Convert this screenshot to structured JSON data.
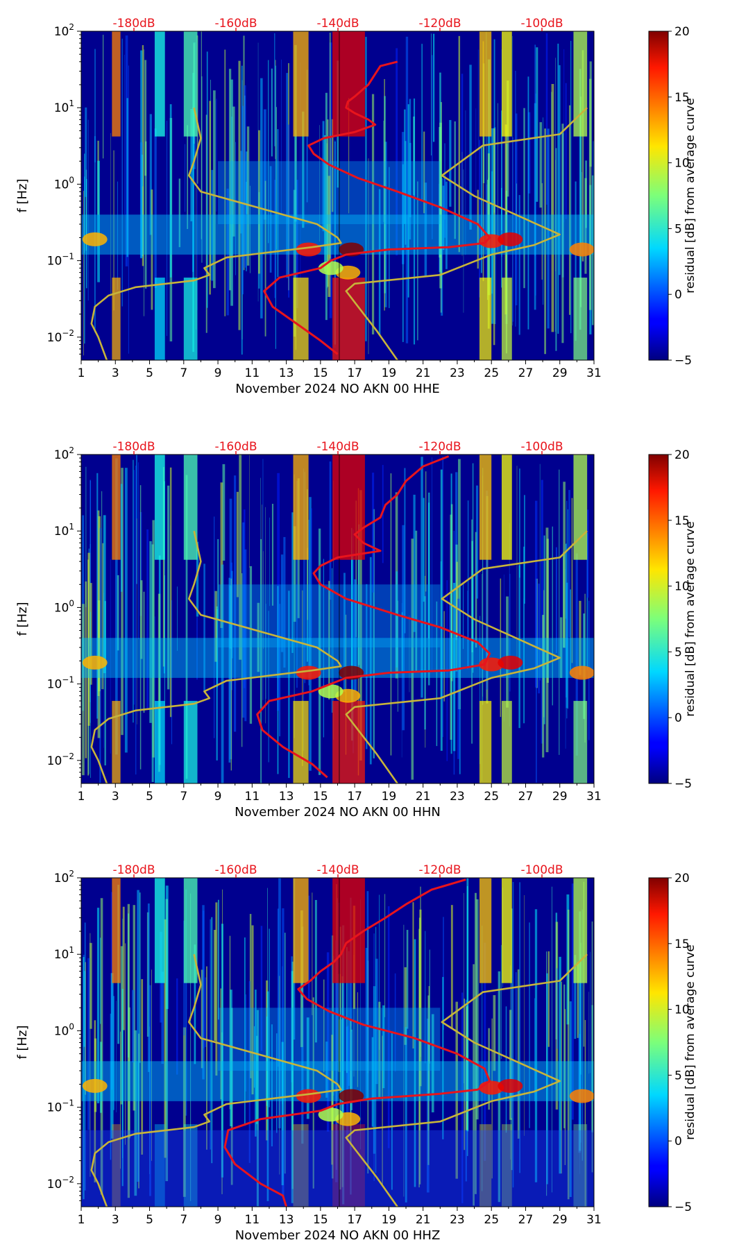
{
  "chart_data": [
    {
      "type": "heatmap",
      "xlabel": "November 2024 NO AKN 00 HHE",
      "ylabel": "f [Hz]",
      "x_ticks": [
        "1",
        "3",
        "5",
        "7",
        "9",
        "11",
        "13",
        "15",
        "17",
        "19",
        "21",
        "23",
        "25",
        "27",
        "29",
        "31"
      ],
      "xlim": [
        1,
        31
      ],
      "y_scale": "log",
      "ylim": [
        0.005,
        100
      ],
      "y_ticks": [
        "10^-2",
        "10^-1",
        "10^0",
        "10^1",
        "10^2"
      ],
      "top_axis_ticks": [
        "-180dB",
        "-160dB",
        "-140dB",
        "-120dB",
        "-100dB"
      ],
      "colorbar": {
        "label": "residual [dB] from average curve",
        "range": [
          -5,
          20
        ],
        "ticks": [
          "−5",
          "0",
          "5",
          "10",
          "15",
          "20"
        ]
      },
      "series": [
        {
          "color": "#e8141c",
          "x": [
            19.5,
            18.5,
            17.8,
            17.0,
            16.6,
            16.5,
            17.0,
            17.8,
            18.2,
            17.0,
            15.2,
            14.3,
            14.6,
            15.5,
            17.2,
            19.5,
            22.0,
            24.2,
            24.9,
            24.6,
            22.5,
            19.0,
            16.5,
            15.6,
            15.0,
            12.6,
            11.7,
            12.2,
            13.6,
            15.0,
            16.0
          ],
          "y": [
            40,
            35,
            20,
            14,
            12,
            10,
            8.5,
            7,
            6,
            4.8,
            4.0,
            3.2,
            2.5,
            1.8,
            1.2,
            0.8,
            0.5,
            0.3,
            0.2,
            0.17,
            0.15,
            0.14,
            0.12,
            0.1,
            0.08,
            0.06,
            0.04,
            0.025,
            0.015,
            0.009,
            0.006
          ]
        },
        {
          "color": "#c8b43a",
          "x": [
            7.6,
            8.0,
            7.6,
            7.3,
            8.0,
            14.8,
            16.0,
            16.2,
            14.5,
            9.5,
            8.2,
            8.5,
            7.6,
            4.2,
            2.6,
            1.8,
            1.6,
            2.0,
            2.5
          ],
          "y": [
            10,
            4,
            2,
            1.3,
            0.8,
            0.3,
            0.2,
            0.17,
            0.15,
            0.11,
            0.08,
            0.065,
            0.055,
            0.045,
            0.035,
            0.025,
            0.015,
            0.01,
            0.005
          ]
        },
        {
          "color": "#c8b43a",
          "x": [
            30.6,
            29.0,
            24.5,
            22.1,
            24.0,
            29.0,
            27.5,
            25.0,
            22.0,
            17.0,
            16.5,
            17.2,
            18.3,
            19.5
          ],
          "y": [
            10,
            4.5,
            3.2,
            1.3,
            0.7,
            0.22,
            0.16,
            0.12,
            0.065,
            0.05,
            0.04,
            0.025,
            0.012,
            0.005
          ]
        }
      ]
    },
    {
      "type": "heatmap",
      "xlabel": "November 2024 NO AKN 00 HHN",
      "ylabel": "f [Hz]",
      "x_ticks": [
        "1",
        "3",
        "5",
        "7",
        "9",
        "11",
        "13",
        "15",
        "17",
        "19",
        "21",
        "23",
        "25",
        "27",
        "29",
        "31"
      ],
      "xlim": [
        1,
        31
      ],
      "y_scale": "log",
      "ylim": [
        0.005,
        100
      ],
      "y_ticks": [
        "10^-2",
        "10^-1",
        "10^0",
        "10^1",
        "10^2"
      ],
      "top_axis_ticks": [
        "-180dB",
        "-160dB",
        "-140dB",
        "-120dB",
        "-100dB"
      ],
      "colorbar": {
        "label": "residual [dB] from average curve",
        "range": [
          -5,
          20
        ],
        "ticks": [
          "−5",
          "0",
          "5",
          "10",
          "15",
          "20"
        ]
      },
      "series": [
        {
          "color": "#e8141c",
          "x": [
            22.5,
            21.0,
            20.0,
            19.5,
            18.8,
            18.5,
            17.5,
            17.0,
            17.5,
            18.5,
            16.0,
            15.0,
            14.6,
            15.0,
            16.5,
            19.5,
            22.0,
            24.2,
            24.9,
            24.6,
            22.5,
            19.0,
            16.5,
            15.6,
            14.5,
            12.0,
            11.3,
            11.6,
            12.8,
            14.5,
            15.4
          ],
          "y": [
            95,
            70,
            45,
            30,
            22,
            15,
            11,
            9,
            7,
            5.5,
            4.5,
            3.5,
            2.8,
            2.0,
            1.3,
            0.8,
            0.55,
            0.35,
            0.25,
            0.18,
            0.15,
            0.14,
            0.12,
            0.1,
            0.08,
            0.06,
            0.04,
            0.025,
            0.015,
            0.009,
            0.006
          ]
        },
        {
          "color": "#c8b43a",
          "x": [
            7.6,
            8.0,
            7.6,
            7.3,
            8.0,
            14.8,
            16.0,
            16.2,
            14.5,
            9.5,
            8.2,
            8.5,
            7.6,
            4.2,
            2.6,
            1.8,
            1.6,
            2.0,
            2.5
          ],
          "y": [
            10,
            4,
            2,
            1.3,
            0.8,
            0.3,
            0.2,
            0.17,
            0.15,
            0.11,
            0.08,
            0.065,
            0.055,
            0.045,
            0.035,
            0.025,
            0.015,
            0.01,
            0.005
          ]
        },
        {
          "color": "#c8b43a",
          "x": [
            30.6,
            29.0,
            24.5,
            22.1,
            24.0,
            29.0,
            27.5,
            25.0,
            22.0,
            17.0,
            16.5,
            17.2,
            18.3,
            19.5
          ],
          "y": [
            10,
            4.5,
            3.2,
            1.3,
            0.7,
            0.22,
            0.16,
            0.12,
            0.065,
            0.05,
            0.04,
            0.025,
            0.012,
            0.005
          ]
        }
      ]
    },
    {
      "type": "heatmap",
      "xlabel": "November 2024 NO AKN 00 HHZ",
      "ylabel": "f [Hz]",
      "x_ticks": [
        "1",
        "3",
        "5",
        "7",
        "9",
        "11",
        "13",
        "15",
        "17",
        "19",
        "21",
        "23",
        "25",
        "27",
        "29",
        "31"
      ],
      "xlim": [
        1,
        31
      ],
      "y_scale": "log",
      "ylim": [
        0.005,
        100
      ],
      "y_ticks": [
        "10^-2",
        "10^-1",
        "10^0",
        "10^1",
        "10^2"
      ],
      "top_axis_ticks": [
        "-180dB",
        "-160dB",
        "-140dB",
        "-120dB",
        "-100dB"
      ],
      "colorbar": {
        "label": "residual [dB] from average curve",
        "range": [
          -5,
          20
        ],
        "ticks": [
          "−5",
          "0",
          "5",
          "10",
          "15",
          "20"
        ]
      },
      "series": [
        {
          "color": "#e8141c",
          "x": [
            23.5,
            21.5,
            20.0,
            18.8,
            17.5,
            16.5,
            16.2,
            15.8,
            15.0,
            14.4,
            13.7,
            14.2,
            15.5,
            17.5,
            20.5,
            23.0,
            24.6,
            24.9,
            24.2,
            22.0,
            18.0,
            16.0,
            15.0,
            11.5,
            9.6,
            9.4,
            10.0,
            11.5,
            12.8,
            13.0
          ],
          "y": [
            95,
            70,
            45,
            30,
            20,
            14,
            10,
            8,
            6,
            4.5,
            3.5,
            2.6,
            1.8,
            1.2,
            0.8,
            0.5,
            0.32,
            0.22,
            0.17,
            0.15,
            0.13,
            0.11,
            0.09,
            0.07,
            0.05,
            0.03,
            0.018,
            0.01,
            0.007,
            0.005
          ]
        },
        {
          "color": "#c8b43a",
          "x": [
            7.6,
            8.0,
            7.6,
            7.3,
            8.0,
            14.8,
            16.0,
            16.2,
            14.5,
            9.5,
            8.2,
            8.5,
            7.6,
            4.2,
            2.6,
            1.8,
            1.6,
            2.0,
            2.5
          ],
          "y": [
            10,
            4,
            2,
            1.3,
            0.8,
            0.3,
            0.2,
            0.17,
            0.15,
            0.11,
            0.08,
            0.065,
            0.055,
            0.045,
            0.035,
            0.025,
            0.015,
            0.01,
            0.005
          ]
        },
        {
          "color": "#c8b43a",
          "x": [
            30.6,
            29.0,
            24.5,
            22.1,
            24.0,
            29.0,
            27.5,
            25.0,
            22.0,
            17.0,
            16.5,
            17.2,
            18.3,
            19.5
          ],
          "y": [
            10,
            4.5,
            3.2,
            1.3,
            0.7,
            0.22,
            0.16,
            0.12,
            0.065,
            0.05,
            0.04,
            0.025,
            0.012,
            0.005
          ]
        }
      ]
    }
  ]
}
